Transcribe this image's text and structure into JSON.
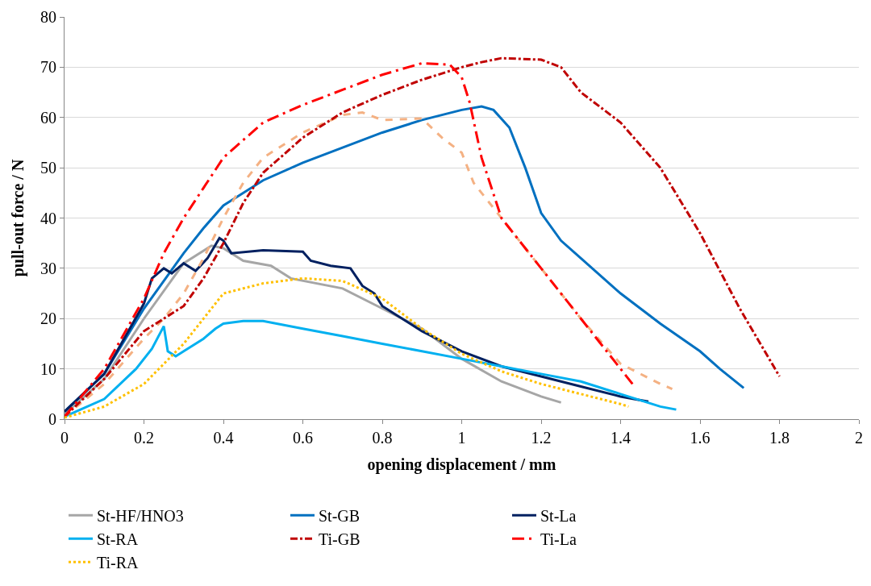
{
  "chart_data": {
    "type": "line",
    "xlabel": "opening displacement / mm",
    "ylabel": "pull-out force / N",
    "xlim": [
      0,
      2
    ],
    "xticks": [
      0,
      0.2,
      0.4,
      0.6,
      0.8,
      1,
      1.2,
      1.4,
      1.6,
      1.8,
      2
    ],
    "ylim": [
      0,
      80
    ],
    "yticks": [
      0,
      10,
      20,
      30,
      40,
      50,
      60,
      70,
      80
    ],
    "grid": "y",
    "legend": "bottom",
    "marker": "none",
    "series": [
      {
        "name": "St-HF/HNO3",
        "color": "#a6a6a6",
        "line_style": "solid",
        "x": [
          0,
          0.1,
          0.2,
          0.3,
          0.37,
          0.4,
          0.45,
          0.52,
          0.57,
          0.7,
          0.8,
          0.9,
          1.0,
          1.1,
          1.2,
          1.25
        ],
        "values": [
          1,
          8,
          20,
          31,
          34.5,
          34,
          31.5,
          30.5,
          28,
          26,
          22,
          18,
          12,
          7.5,
          4.5,
          3.3
        ]
      },
      {
        "name": "St-GB",
        "color": "#0070c0",
        "line_style": "solid",
        "x": [
          0,
          0.1,
          0.2,
          0.3,
          0.35,
          0.4,
          0.5,
          0.6,
          0.7,
          0.8,
          0.9,
          1.0,
          1.05,
          1.08,
          1.12,
          1.16,
          1.2,
          1.25,
          1.3,
          1.4,
          1.5,
          1.6,
          1.65,
          1.71
        ],
        "values": [
          1.5,
          9,
          22,
          33,
          38,
          42.5,
          47.5,
          51,
          54,
          57,
          59.5,
          61.5,
          62.2,
          61.5,
          58,
          50,
          41,
          35.5,
          32,
          25,
          19,
          13.5,
          10,
          6.2
        ]
      },
      {
        "name": "St-La",
        "color": "#002060",
        "line_style": "solid",
        "x": [
          0,
          0.1,
          0.2,
          0.22,
          0.25,
          0.27,
          0.3,
          0.33,
          0.36,
          0.39,
          0.4,
          0.42,
          0.5,
          0.6,
          0.62,
          0.67,
          0.72,
          0.75,
          0.78,
          0.8,
          0.9,
          1.0,
          1.1,
          1.2,
          1.3,
          1.4,
          1.47
        ],
        "values": [
          1.5,
          9,
          23,
          28,
          30,
          29,
          31,
          29.5,
          32,
          36,
          35.5,
          33,
          33.6,
          33.3,
          31.5,
          30.5,
          30,
          26.5,
          25,
          22.5,
          17.5,
          13.5,
          10.5,
          8.5,
          6.5,
          4.5,
          3.5
        ]
      },
      {
        "name": "St-RA",
        "color": "#00b0f0",
        "line_style": "solid",
        "x": [
          0,
          0.1,
          0.18,
          0.22,
          0.25,
          0.26,
          0.28,
          0.3,
          0.35,
          0.38,
          0.4,
          0.45,
          0.5,
          0.6,
          0.7,
          0.8,
          0.9,
          1.0,
          1.1,
          1.2,
          1.3,
          1.4,
          1.5,
          1.54
        ],
        "values": [
          0.5,
          4,
          10,
          14,
          18.5,
          13.5,
          12.5,
          13.5,
          16,
          18,
          19,
          19.5,
          19.5,
          18,
          16.5,
          15,
          13.5,
          12,
          10.5,
          9,
          7.5,
          5,
          2.5,
          1.9
        ]
      },
      {
        "color": "#f4b183",
        "line_style": "dashed",
        "x": [
          0,
          0.1,
          0.2,
          0.25,
          0.3,
          0.35,
          0.4,
          0.45,
          0.5,
          0.6,
          0.7,
          0.75,
          0.8,
          0.9,
          0.95,
          1.0,
          1.03,
          1.08,
          1.15,
          1.2,
          1.3,
          1.4,
          1.5,
          1.53
        ],
        "values": [
          0.5,
          7,
          16,
          20,
          25,
          32,
          40,
          47,
          52,
          57,
          60.5,
          61,
          59.5,
          59.8,
          56,
          53,
          47,
          42,
          35,
          30,
          20,
          11,
          7,
          6
        ]
      },
      {
        "name": "Ti-GB",
        "color": "#c00000",
        "line_style": "dashdot",
        "x": [
          0,
          0.1,
          0.2,
          0.25,
          0.3,
          0.35,
          0.4,
          0.45,
          0.5,
          0.6,
          0.7,
          0.8,
          0.9,
          1.0,
          1.05,
          1.1,
          1.2,
          1.25,
          1.3,
          1.4,
          1.5,
          1.6,
          1.7,
          1.8
        ],
        "values": [
          0.5,
          8,
          17.5,
          20,
          22.5,
          28,
          35,
          43,
          49,
          56,
          61,
          64.5,
          67.5,
          70,
          71,
          71.8,
          71.5,
          70,
          65,
          59,
          50,
          37,
          22,
          8.5
        ]
      },
      {
        "name": "Ti-La",
        "color": "#ff0000",
        "line_style": "longdashdot",
        "x": [
          0,
          0.1,
          0.2,
          0.25,
          0.3,
          0.35,
          0.4,
          0.5,
          0.6,
          0.7,
          0.8,
          0.9,
          0.97,
          1.0,
          1.02,
          1.05,
          1.1,
          1.2,
          1.3,
          1.4,
          1.43
        ],
        "values": [
          0.5,
          10,
          24,
          33,
          40,
          46,
          52,
          59,
          62.5,
          65.5,
          68.5,
          70.8,
          70.5,
          68,
          63,
          52,
          40,
          30,
          20,
          10,
          7
        ]
      },
      {
        "name": "Ti-RA",
        "color": "#ffc000",
        "line_style": "dotted",
        "x": [
          0,
          0.1,
          0.2,
          0.3,
          0.4,
          0.5,
          0.6,
          0.7,
          0.8,
          0.9,
          1.0,
          1.1,
          1.2,
          1.3,
          1.4,
          1.42
        ],
        "values": [
          0.3,
          2.5,
          7,
          15,
          25,
          27,
          28,
          27.5,
          24,
          18,
          13,
          9.5,
          7,
          5,
          3,
          2.5
        ]
      }
    ]
  }
}
